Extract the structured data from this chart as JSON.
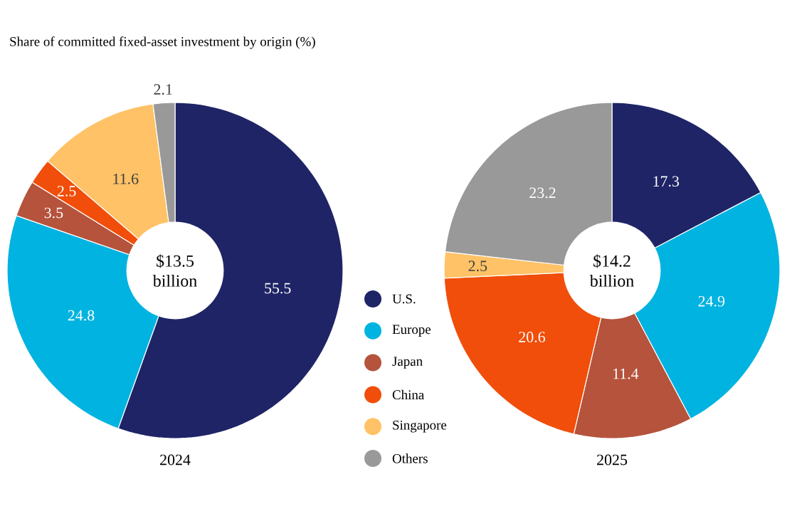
{
  "chart_data": [
    {
      "type": "donut",
      "title": "Share of committed fixed-asset investment by origin (%)",
      "xlabel": "2024",
      "annotations": [
        "$13.5 billion"
      ],
      "legend": "right",
      "data_labels": true,
      "categories": [
        "U.S.",
        "Europe",
        "Japan",
        "China",
        "Singapore",
        "Others"
      ],
      "values": [
        55.5,
        24.8,
        3.5,
        2.5,
        11.6,
        2.1
      ],
      "colors": [
        "#1f2466",
        "#00b3e0",
        "#b5533c",
        "#f04e0a",
        "#ffc266",
        "#999999"
      ]
    },
    {
      "type": "donut",
      "xlabel": "2025",
      "annotations": [
        "$14.2 billion"
      ],
      "data_labels": true,
      "categories": [
        null,
        null,
        null,
        null,
        null,
        null
      ],
      "values": [
        17.3,
        24.9,
        11.4,
        20.6,
        2.5,
        23.2
      ],
      "colors": [
        "#1f2466",
        "#00b3e0",
        "#b5533c",
        "#f04e0a",
        "#ffc266",
        "#999999"
      ]
    }
  ]
}
